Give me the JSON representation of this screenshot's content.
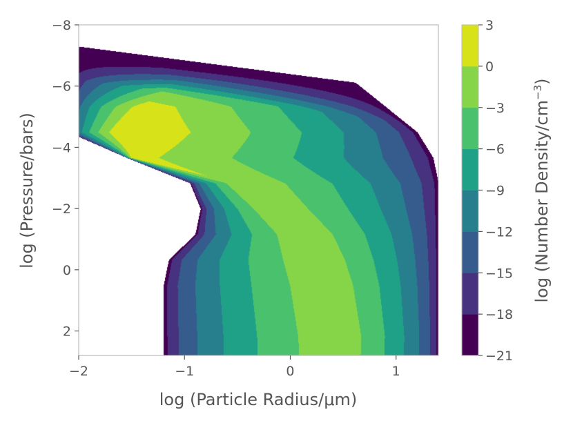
{
  "chart_data": {
    "type": "contourf",
    "xlabel": "log (Particle Radius/μm)",
    "ylabel": "log (Pressure/bars)",
    "colorbar_label": "log (Number Density/cm",
    "colorbar_label_exp": "−3",
    "xlim": [
      -2,
      1.4
    ],
    "ylim": [
      2.8,
      -8
    ],
    "x_ticks": [
      -2,
      -1,
      0,
      1
    ],
    "x_tick_labels": [
      "−2",
      "−1",
      "0",
      "1"
    ],
    "y_ticks": [
      -8,
      -6,
      -4,
      -2,
      0,
      2
    ],
    "y_tick_labels": [
      "−8",
      "−6",
      "−4",
      "−2",
      "0",
      "2"
    ],
    "levels": [
      -21,
      -18,
      -15,
      -12,
      -9,
      -6,
      -3,
      0,
      3
    ],
    "level_labels": [
      "−21",
      "−18",
      "−15",
      "−12",
      "−9",
      "−6",
      "−3",
      "0",
      "3"
    ],
    "band_colors": [
      "#440154",
      "#46327e",
      "#365c8d",
      "#277f8e",
      "#1fa187",
      "#4ac16d",
      "#86d549",
      "#d8e219"
    ],
    "field": {
      "tip_x": [
        -2.1,
        -2.1,
        -2.1,
        -2.1,
        -1.55,
        -0.95,
        -0.85,
        -0.9,
        -1.15,
        -1.2,
        -1.2,
        -1.2,
        -1.2
      ],
      "right_x": [
        0.5,
        0.6,
        0.9,
        1.2,
        1.35,
        1.4,
        1.4,
        1.4,
        1.4,
        1.4,
        1.4,
        1.4,
        1.4
      ],
      "min_v": [
        -21,
        -21,
        -21,
        -21,
        -21,
        -21,
        -21,
        -21,
        -21,
        -21,
        -21,
        -21,
        -21
      ],
      "max_v": [
        -16,
        -6,
        1.6,
        3,
        1,
        -0.4,
        -0.5,
        -0.5,
        -0.5,
        -0.5,
        -0.5,
        -0.5,
        -0.6
      ],
      "peak_x": [
        -1.3,
        -1.1,
        -1.4,
        -1.6,
        -1.5,
        -0.5,
        -0.2,
        0.1,
        0.25,
        0.35,
        0.4,
        0.45,
        0.45
      ],
      "cap_y": -7.3
    }
  }
}
